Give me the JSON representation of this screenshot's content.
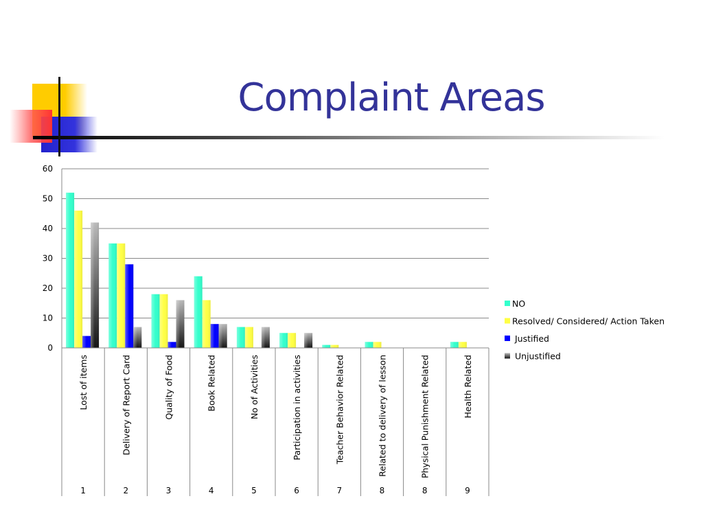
{
  "slide": {
    "title": "Complaint Areas"
  },
  "chart_data": {
    "type": "bar",
    "title": "",
    "xlabel": "",
    "ylabel": "",
    "ylim": [
      0,
      60
    ],
    "yticks": [
      0,
      10,
      20,
      30,
      40,
      50,
      60
    ],
    "grid": true,
    "legend_position": "right",
    "categories": [
      "Lost of items",
      "Delivery of Report Card",
      "Quality of Food",
      "Book Related",
      "No of Activities",
      "Participation in activities",
      "Teacher Behavior Related",
      "Related to delivery of lesson",
      "Physical Punishment Related",
      "Health Related"
    ],
    "category_numbers": [
      "1",
      "2",
      "3",
      "4",
      "5",
      "6",
      "7",
      "8",
      "8",
      "9"
    ],
    "series": [
      {
        "name": "NO",
        "color": "#33ffcc",
        "values": [
          52,
          35,
          18,
          24,
          7,
          5,
          1,
          2,
          0,
          2
        ]
      },
      {
        "name": "Resolved/ Considered/ Action Taken",
        "color": "#ffff44",
        "values": [
          46,
          35,
          18,
          16,
          7,
          5,
          1,
          2,
          0,
          2
        ]
      },
      {
        "name": "Justified",
        "color": "#0000ff",
        "values": [
          4,
          28,
          2,
          8,
          0,
          0,
          0,
          0,
          0,
          0
        ]
      },
      {
        "name": "Unjustified",
        "color": "#888888",
        "values": [
          42,
          7,
          16,
          8,
          7,
          5,
          0,
          0,
          0,
          0
        ]
      }
    ]
  }
}
